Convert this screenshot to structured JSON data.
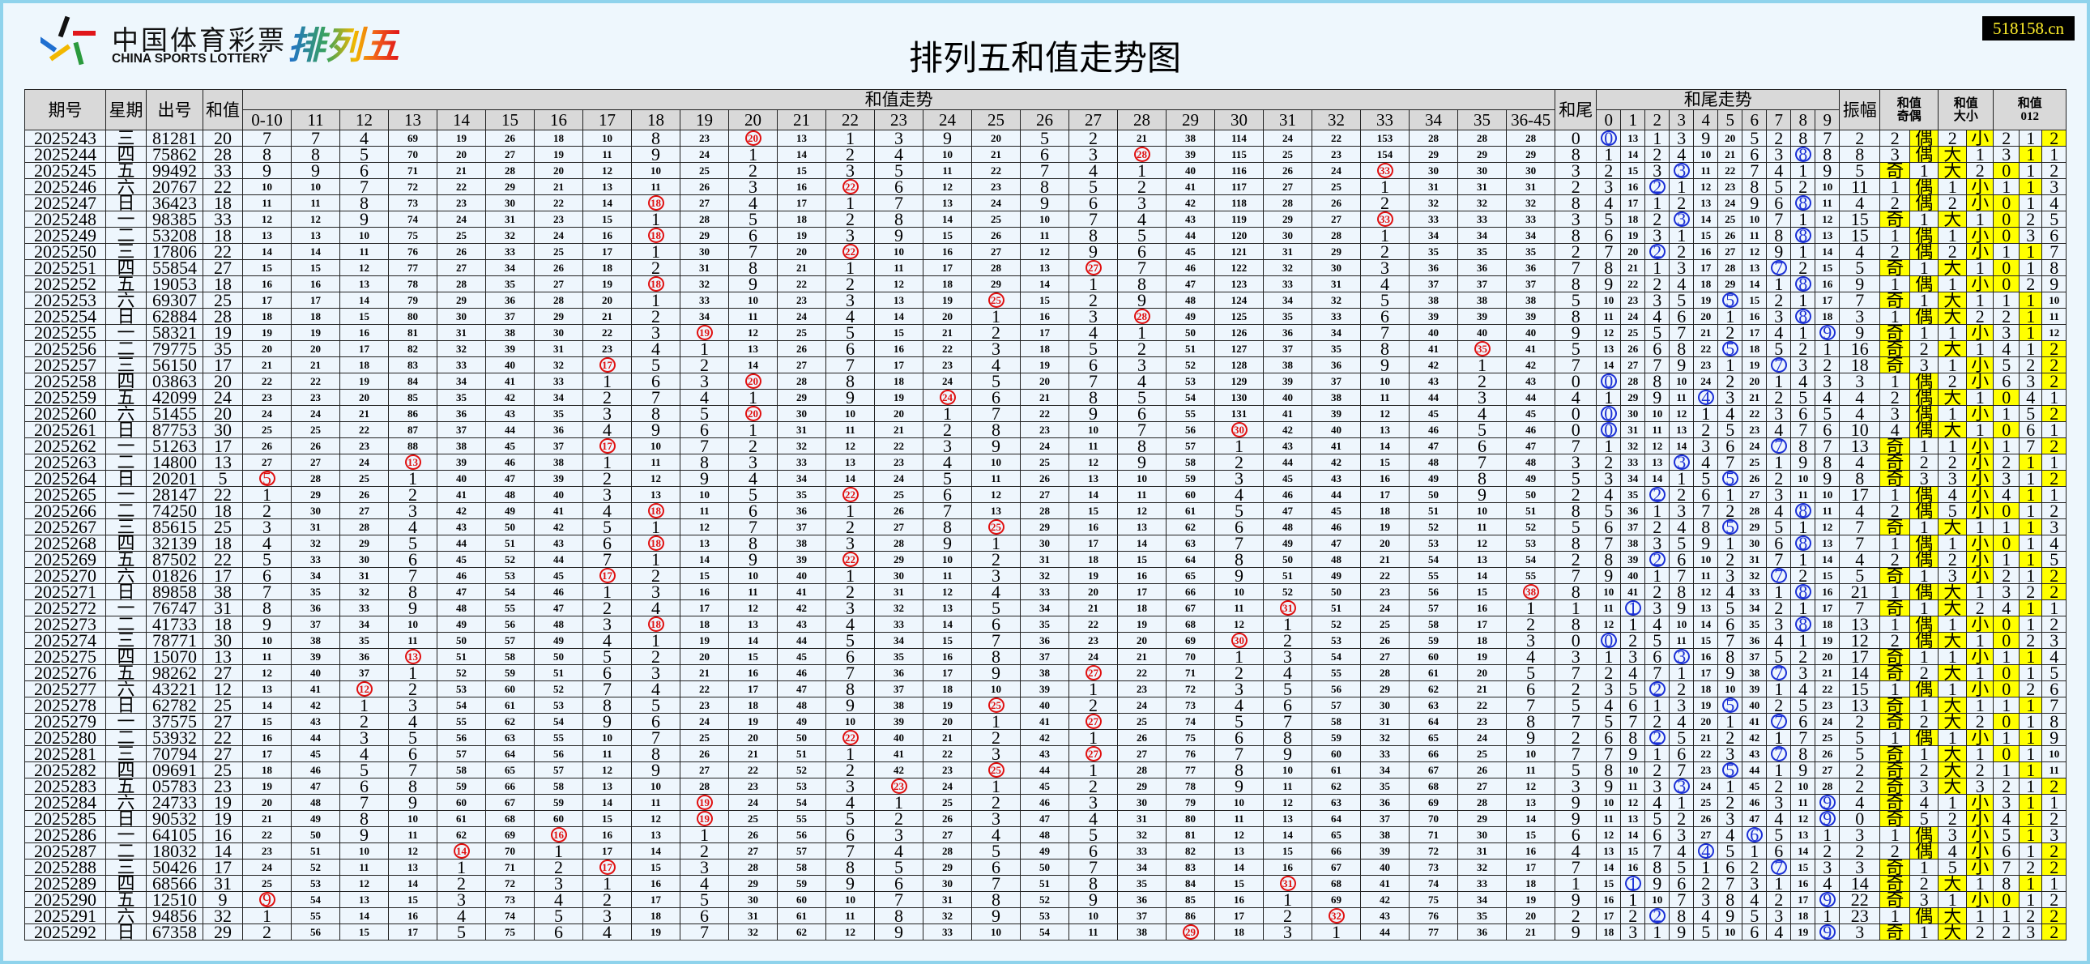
{
  "logo": {
    "cn": "中国体育彩票",
    "en": "CHINA SPORTS LOTTERY",
    "game": "排列五"
  },
  "title": "排列五和值走势图",
  "watermark": "518158.cn",
  "colors": {
    "sum_hit": "#e01010",
    "tail_hit": "#1a2fd6",
    "highlight": "#ffff00",
    "header_bg": "#d9d9d9",
    "frame": "#8fd3ec"
  },
  "headers": {
    "issue": "期号",
    "weekday": "星期",
    "number": "出号",
    "sum": "和值",
    "sum_trend": "和值走势",
    "tail": "和尾",
    "tail_trend": "和尾走势",
    "amplitude": "振幅",
    "odd_even": "和值奇偶",
    "big_small": "和值大小",
    "mod3": "和值012"
  },
  "sum_columns": [
    "0-10",
    "11",
    "12",
    "13",
    "14",
    "15",
    "16",
    "17",
    "18",
    "19",
    "20",
    "21",
    "22",
    "23",
    "24",
    "25",
    "26",
    "27",
    "28",
    "29",
    "30",
    "31",
    "32",
    "33",
    "34",
    "35",
    "36-45"
  ],
  "tail_columns": [
    "0",
    "1",
    "2",
    "3",
    "4",
    "5",
    "6",
    "7",
    "8",
    "9"
  ],
  "labels": {
    "odd": "奇",
    "even": "偶",
    "big": "大",
    "small": "小"
  },
  "initial": {
    "sum_trend": [
      7,
      7,
      4,
      69,
      19,
      26,
      18,
      10,
      8,
      23,
      null,
      13,
      1,
      3,
      9,
      20,
      5,
      2,
      21,
      38,
      114,
      24,
      22,
      153,
      28,
      28,
      28
    ],
    "tail_trend": [
      null,
      13,
      1,
      3,
      9,
      20,
      5,
      2,
      8,
      7
    ],
    "amplitude": 2,
    "odd_even": [
      2,
      null
    ],
    "big_small": [
      2,
      null
    ],
    "mod3": [
      2,
      1,
      null
    ]
  },
  "rows": [
    {
      "issue": "2025243",
      "weekday": "三",
      "number": "81281",
      "sum": 20
    },
    {
      "issue": "2025244",
      "weekday": "四",
      "number": "75862",
      "sum": 28
    },
    {
      "issue": "2025245",
      "weekday": "五",
      "number": "99492",
      "sum": 33
    },
    {
      "issue": "2025246",
      "weekday": "六",
      "number": "20767",
      "sum": 22
    },
    {
      "issue": "2025247",
      "weekday": "日",
      "number": "36423",
      "sum": 18
    },
    {
      "issue": "2025248",
      "weekday": "一",
      "number": "98385",
      "sum": 33
    },
    {
      "issue": "2025249",
      "weekday": "二",
      "number": "53208",
      "sum": 18
    },
    {
      "issue": "2025250",
      "weekday": "三",
      "number": "17806",
      "sum": 22
    },
    {
      "issue": "2025251",
      "weekday": "四",
      "number": "55854",
      "sum": 27
    },
    {
      "issue": "2025252",
      "weekday": "五",
      "number": "19053",
      "sum": 18
    },
    {
      "issue": "2025253",
      "weekday": "六",
      "number": "69307",
      "sum": 25
    },
    {
      "issue": "2025254",
      "weekday": "日",
      "number": "62884",
      "sum": 28
    },
    {
      "issue": "2025255",
      "weekday": "一",
      "number": "58321",
      "sum": 19
    },
    {
      "issue": "2025256",
      "weekday": "二",
      "number": "79775",
      "sum": 35
    },
    {
      "issue": "2025257",
      "weekday": "三",
      "number": "56150",
      "sum": 17
    },
    {
      "issue": "2025258",
      "weekday": "四",
      "number": "03863",
      "sum": 20
    },
    {
      "issue": "2025259",
      "weekday": "五",
      "number": "42099",
      "sum": 24
    },
    {
      "issue": "2025260",
      "weekday": "六",
      "number": "51455",
      "sum": 20
    },
    {
      "issue": "2025261",
      "weekday": "日",
      "number": "87753",
      "sum": 30
    },
    {
      "issue": "2025262",
      "weekday": "一",
      "number": "51263",
      "sum": 17
    },
    {
      "issue": "2025263",
      "weekday": "二",
      "number": "14800",
      "sum": 13
    },
    {
      "issue": "2025264",
      "weekday": "日",
      "number": "20201",
      "sum": 5
    },
    {
      "issue": "2025265",
      "weekday": "一",
      "number": "28147",
      "sum": 22
    },
    {
      "issue": "2025266",
      "weekday": "二",
      "number": "74250",
      "sum": 18
    },
    {
      "issue": "2025267",
      "weekday": "三",
      "number": "85615",
      "sum": 25
    },
    {
      "issue": "2025268",
      "weekday": "四",
      "number": "32139",
      "sum": 18
    },
    {
      "issue": "2025269",
      "weekday": "五",
      "number": "87502",
      "sum": 22
    },
    {
      "issue": "2025270",
      "weekday": "六",
      "number": "01826",
      "sum": 17
    },
    {
      "issue": "2025271",
      "weekday": "日",
      "number": "89858",
      "sum": 38
    },
    {
      "issue": "2025272",
      "weekday": "一",
      "number": "76747",
      "sum": 31
    },
    {
      "issue": "2025273",
      "weekday": "二",
      "number": "41733",
      "sum": 18
    },
    {
      "issue": "2025274",
      "weekday": "三",
      "number": "78771",
      "sum": 30
    },
    {
      "issue": "2025275",
      "weekday": "四",
      "number": "15070",
      "sum": 13
    },
    {
      "issue": "2025276",
      "weekday": "五",
      "number": "98262",
      "sum": 27
    },
    {
      "issue": "2025277",
      "weekday": "六",
      "number": "43221",
      "sum": 12
    },
    {
      "issue": "2025278",
      "weekday": "日",
      "number": "62782",
      "sum": 25
    },
    {
      "issue": "2025279",
      "weekday": "一",
      "number": "37575",
      "sum": 27
    },
    {
      "issue": "2025280",
      "weekday": "二",
      "number": "53932",
      "sum": 22
    },
    {
      "issue": "2025281",
      "weekday": "三",
      "number": "70794",
      "sum": 27
    },
    {
      "issue": "2025282",
      "weekday": "四",
      "number": "09691",
      "sum": 25
    },
    {
      "issue": "2025283",
      "weekday": "五",
      "number": "05783",
      "sum": 23
    },
    {
      "issue": "2025284",
      "weekday": "六",
      "number": "24733",
      "sum": 19
    },
    {
      "issue": "2025285",
      "weekday": "日",
      "number": "90532",
      "sum": 19
    },
    {
      "issue": "2025286",
      "weekday": "一",
      "number": "64105",
      "sum": 16
    },
    {
      "issue": "2025287",
      "weekday": "二",
      "number": "18032",
      "sum": 14
    },
    {
      "issue": "2025288",
      "weekday": "三",
      "number": "50426",
      "sum": 17
    },
    {
      "issue": "2025289",
      "weekday": "四",
      "number": "68566",
      "sum": 31
    },
    {
      "issue": "2025290",
      "weekday": "五",
      "number": "12510",
      "sum": 9
    },
    {
      "issue": "2025291",
      "weekday": "六",
      "number": "94856",
      "sum": 32
    },
    {
      "issue": "2025292",
      "weekday": "日",
      "number": "67358",
      "sum": 29
    }
  ]
}
